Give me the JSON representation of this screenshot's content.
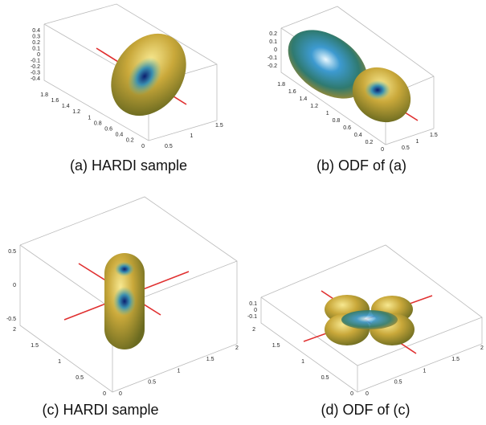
{
  "panels": [
    {
      "caption": "(a) HARDI sample",
      "z_ticks": [
        "0.4",
        "0.3",
        "0.2",
        "0.1",
        "0",
        "-0.1",
        "-0.2",
        "-0.3",
        "-0.4"
      ],
      "left_ticks": [
        "1.8",
        "1.6",
        "1.4",
        "1.2",
        "1",
        "0.8",
        "0.6",
        "0.4",
        "0.2",
        "0"
      ],
      "right_ticks": [
        "0.5",
        "1",
        "1.5"
      ]
    },
    {
      "caption": "(b) ODF of (a)",
      "z_ticks": [
        "0.2",
        "0.1",
        "0",
        "-0.1",
        "-0.2"
      ],
      "left_ticks": [
        "1.8",
        "1.6",
        "1.4",
        "1.2",
        "1",
        "0.8",
        "0.6",
        "0.4",
        "0.2",
        "0"
      ],
      "right_ticks": [
        "0.5",
        "1",
        "1.5"
      ]
    },
    {
      "caption": "(c) HARDI sample",
      "z_ticks": [
        "0.5",
        "0",
        "-0.5"
      ],
      "left_ticks": [
        "2",
        "1.5",
        "1",
        "0.5",
        "0"
      ],
      "right_ticks": [
        "0",
        "0.5",
        "1",
        "1.5",
        "2"
      ]
    },
    {
      "caption": "(d) ODF of (c)",
      "z_ticks": [
        "0.1",
        "0",
        "-0.1"
      ],
      "left_ticks": [
        "2",
        "1.5",
        "1",
        "0.5",
        "0"
      ],
      "right_ticks": [
        "0",
        "0.5",
        "1",
        "1.5",
        "2"
      ]
    }
  ]
}
